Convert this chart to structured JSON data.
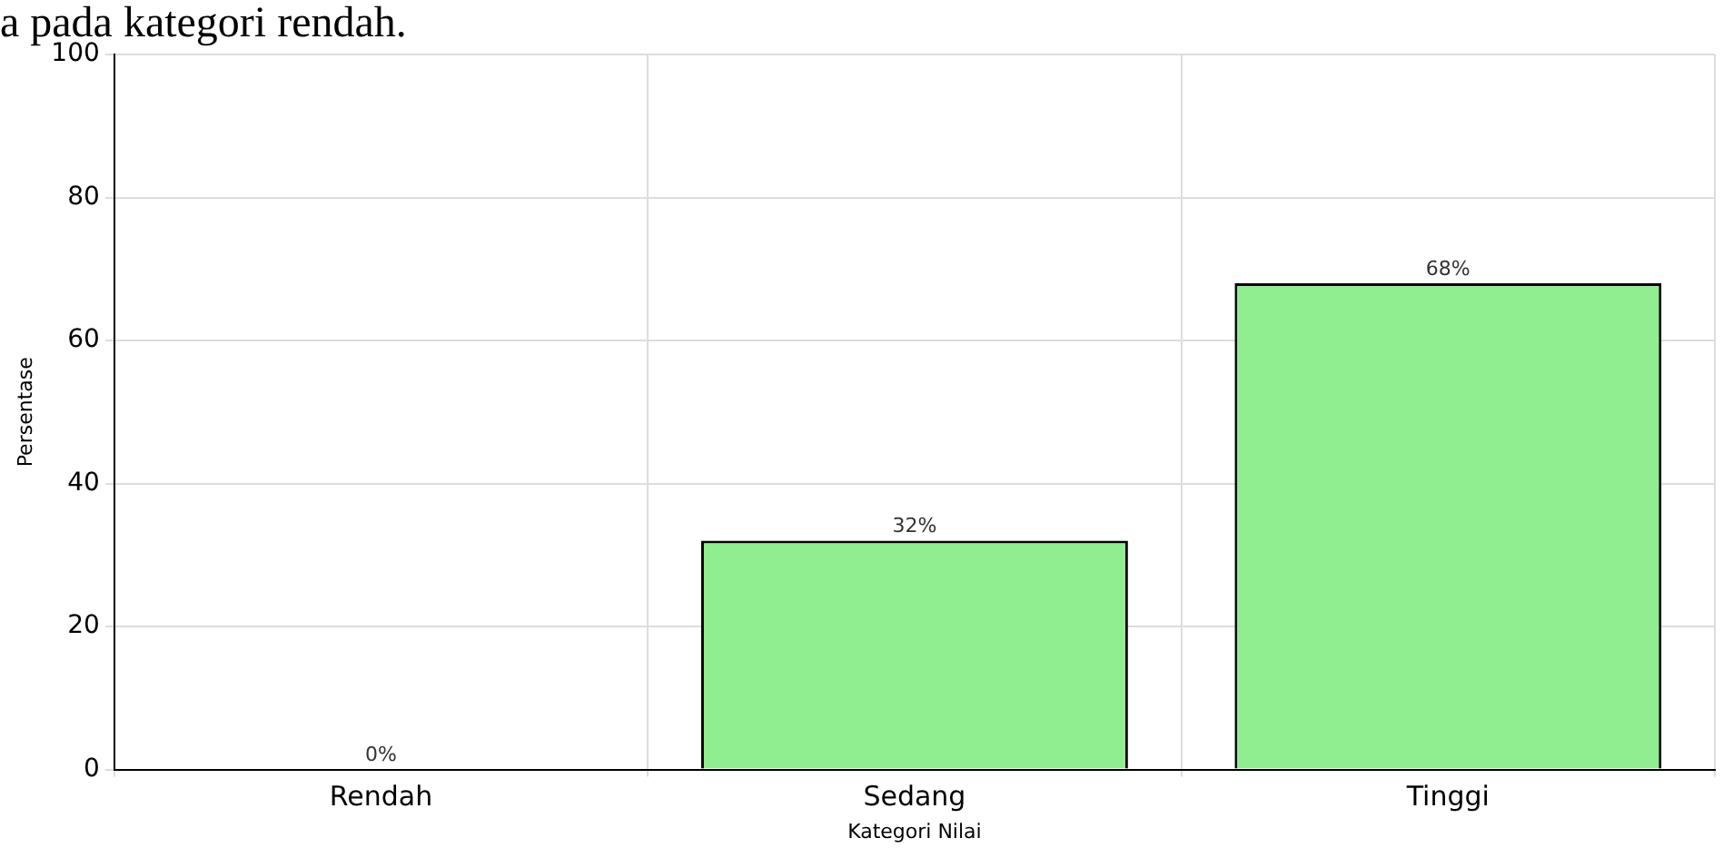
{
  "chart_data": {
    "type": "bar",
    "xlabel": "Kategori Nilai",
    "ylabel": "Persentase",
    "annotations": [
      "a pada kategori rendah."
    ],
    "categories": [
      "Rendah",
      "Sedang",
      "Tinggi"
    ],
    "values": [
      0,
      32,
      68
    ],
    "value_labels": [
      "0%",
      "32%",
      "68%"
    ],
    "color": "#90ee90",
    "ylim": [
      0,
      100
    ],
    "yticks": [
      0,
      20,
      40,
      60,
      80,
      100
    ],
    "grid": true,
    "legend": false
  }
}
